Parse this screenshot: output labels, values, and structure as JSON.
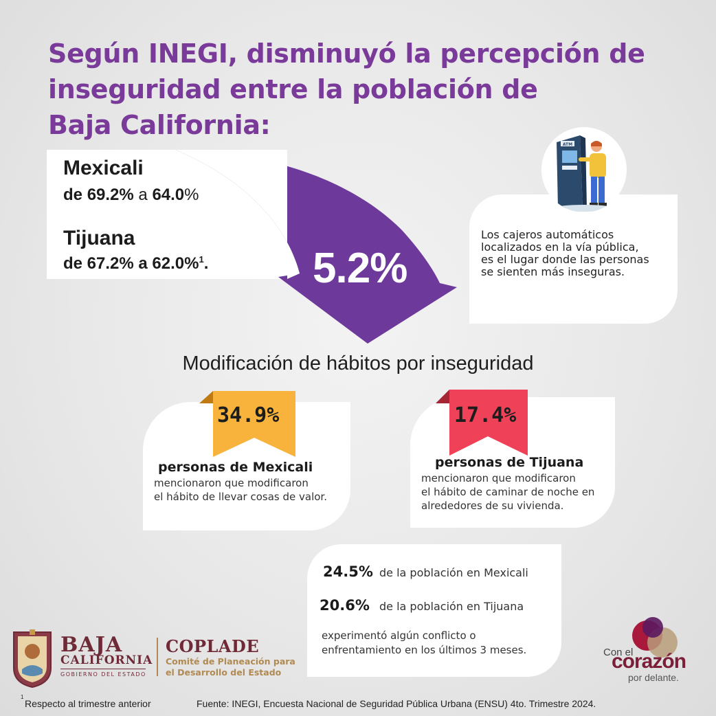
{
  "title": {
    "line1": "Según INEGI, disminuyó la percepción de",
    "line2": "inseguridad entre la población de",
    "line3": "Baja California:"
  },
  "cities": {
    "mexicali": {
      "name": "Mexicali",
      "prefix": "de ",
      "from": "69.2%",
      "sep": " a ",
      "to": "64.0",
      "suffix": "%"
    },
    "tijuana": {
      "name": "Tijuana",
      "text": "de 67.2% a 62.0%",
      "sup": "1",
      "end": "."
    }
  },
  "decrease": "5.2%",
  "atm": {
    "text": "Los cajeros automáticos localizados en la vía pública, es el lugar donde las personas se sienten más inseguras.",
    "sign": "ATM",
    "lines": [
      "Los cajeros automáticos",
      "localizados en la vía pública,",
      "es el lugar donde las personas",
      "se sienten más inseguras."
    ]
  },
  "habits": {
    "title": "Modificación de hábitos por inseguridad",
    "mexicali": {
      "pct": "34.9%",
      "head": "personas de Mexicali",
      "line1": "mencionaron que modificaron",
      "line2": "el hábito de llevar cosas de valor.",
      "color": "#f7b33b"
    },
    "tijuana": {
      "pct": "17.4%",
      "head": "personas de Tijuana",
      "line1": "mencionaron que modificaron",
      "line2": "el hábito de caminar de noche en",
      "line3": "alrededores de su vivienda.",
      "color": "#ef4157"
    }
  },
  "conflict": {
    "mexicali_pct": "24.5%",
    "mexicali_txt": "de la población en Mexicali",
    "tijuana_pct": "20.6%",
    "tijuana_txt": "de la población en Tijuana",
    "foot1": "experimentó algún conflicto o",
    "foot2": "enfrentamiento en los últimos 3 meses."
  },
  "logos": {
    "bc_line1": "BAJA",
    "bc_line2": "CALIFORNIA",
    "bc_line3": "GOBIERNO DEL ESTADO",
    "coplade": "COPLADE",
    "coplade_sub1": "Comité de Planeación para",
    "coplade_sub2": "el Desarrollo del Estado",
    "slogan_top": "Con el",
    "slogan_main": "corazón",
    "slogan_bottom": "por delante."
  },
  "footer": {
    "note_mark": "1",
    "note": "Respecto al trimestre anterior",
    "source": "Fuente: INEGI, Encuesta Nacional de Seguridad Pública Urbana (ENSU) 4to. Trimestre 2024."
  },
  "colors": {
    "purple": "#7a3a9a",
    "arrow": "#6d3a9c",
    "orange": "#f7b33b",
    "red": "#ef4157",
    "wine": "#6f2a37"
  }
}
